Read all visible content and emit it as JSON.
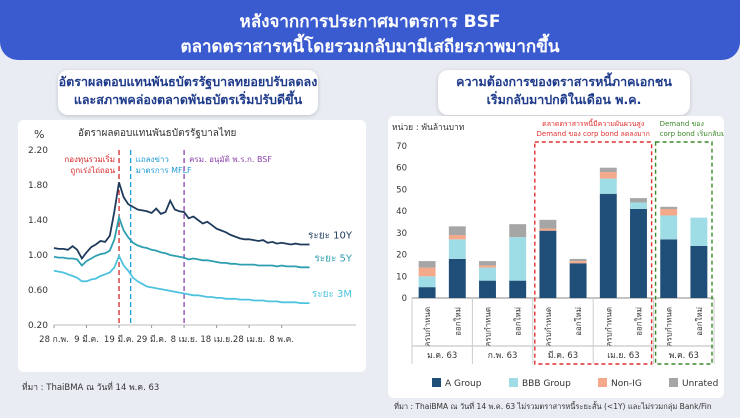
{
  "header": {
    "line1": "หลังจากการประกาศมาตรการ BSF",
    "line2": "ตลาดตราสารหนี้โดยรวมกลับมามีเสถียรภาพมากขึ้น"
  },
  "left_panel": {
    "heading_line1": "อัตราผลตอบแทนพันธบัตรรัฐบาลทยอยปรับลดลง",
    "heading_line2": "และสภาพคล่องตลาดพันธบัตรเริ่มปรับดีขึ้น",
    "source": "ที่มา : ThaiBMA ณ วันที่ 14 พ.ค. 63"
  },
  "right_panel": {
    "heading_line1": "ความต้องการของตราสารหนี้ภาคเอกชน",
    "heading_line2": "เริ่มกลับมาปกติในเดือน พ.ค.",
    "source": "ที่มา : ThaiBMA ณ วันที่ 14 พ.ค. 63 ไม่รวมตราสารหนี้ระยะสั้น (<1Y) และไม่รวมกลุ่ม Bank/Fin"
  },
  "chart_data": [
    {
      "type": "line",
      "title": "อัตราผลตอบแทนพันธบัตรรัฐบาลไทย",
      "ylabel": "%",
      "ylim": [
        0.2,
        2.2
      ],
      "yticks": [
        "2.20",
        "1.80",
        "1.40",
        "1.00",
        "0.60",
        "0.20"
      ],
      "xlim": [
        0,
        65
      ],
      "xticks": [
        {
          "label": "28 ก.พ.",
          "x": 0
        },
        {
          "label": "9 มี.ค.",
          "x": 7
        },
        {
          "label": "19 มี.ค.",
          "x": 14
        },
        {
          "label": "29 มี.ค.",
          "x": 21
        },
        {
          "label": "8 เม.ย.",
          "x": 28
        },
        {
          "label": "18 เม.ย.",
          "x": 35
        },
        {
          "label": "28 เม.ย.",
          "x": 42
        },
        {
          "label": "8 พ.ค.",
          "x": 49
        }
      ],
      "events": [
        {
          "x": 14,
          "label1": "กองทุนรวมเริ่ม",
          "label2": "ถูกเร่งไถ่ถอน",
          "color": "#d62728"
        },
        {
          "x": 16.5,
          "label1": "แถลงข่าว",
          "label2": "มาตรการ MFLF",
          "color": "#1f9bd6"
        },
        {
          "x": 28,
          "label1": "ครม. อนุมัติ พ.ร.ก. BSF",
          "label2": "",
          "color": "#8e44ad"
        }
      ],
      "series": [
        {
          "name": "ระยะ 10Y",
          "color": "#1f3b5c",
          "points": [
            [
              0,
              1.08
            ],
            [
              1,
              1.07
            ],
            [
              2,
              1.07
            ],
            [
              3,
              1.06
            ],
            [
              4,
              1.1
            ],
            [
              5,
              1.06
            ],
            [
              6,
              0.96
            ],
            [
              7,
              1.03
            ],
            [
              8,
              1.09
            ],
            [
              9,
              1.12
            ],
            [
              10,
              1.16
            ],
            [
              11,
              1.15
            ],
            [
              12,
              1.22
            ],
            [
              13,
              1.5
            ],
            [
              14,
              1.83
            ],
            [
              15,
              1.66
            ],
            [
              16,
              1.58
            ],
            [
              17,
              1.55
            ],
            [
              18,
              1.52
            ],
            [
              19,
              1.51
            ],
            [
              20,
              1.5
            ],
            [
              21,
              1.48
            ],
            [
              22,
              1.53
            ],
            [
              23,
              1.47
            ],
            [
              24,
              1.49
            ],
            [
              25,
              1.62
            ],
            [
              26,
              1.52
            ],
            [
              27,
              1.5
            ],
            [
              28,
              1.49
            ],
            [
              29,
              1.42
            ],
            [
              30,
              1.44
            ],
            [
              31,
              1.4
            ],
            [
              32,
              1.36
            ],
            [
              33,
              1.38
            ],
            [
              34,
              1.34
            ],
            [
              35,
              1.3
            ],
            [
              36,
              1.28
            ],
            [
              37,
              1.26
            ],
            [
              38,
              1.23
            ],
            [
              39,
              1.21
            ],
            [
              40,
              1.19
            ],
            [
              41,
              1.18
            ],
            [
              42,
              1.18
            ],
            [
              43,
              1.17
            ],
            [
              44,
              1.16
            ],
            [
              45,
              1.17
            ],
            [
              46,
              1.14
            ],
            [
              47,
              1.15
            ],
            [
              48,
              1.13
            ],
            [
              49,
              1.14
            ],
            [
              50,
              1.13
            ],
            [
              51,
              1.12
            ],
            [
              52,
              1.13
            ],
            [
              53,
              1.12
            ],
            [
              54,
              1.12
            ],
            [
              55,
              1.12
            ]
          ]
        },
        {
          "name": "ระยะ 5Y",
          "color": "#2e9fb0",
          "points": [
            [
              0,
              0.98
            ],
            [
              1,
              0.97
            ],
            [
              2,
              0.97
            ],
            [
              3,
              0.96
            ],
            [
              4,
              0.96
            ],
            [
              5,
              0.95
            ],
            [
              6,
              0.88
            ],
            [
              7,
              0.93
            ],
            [
              8,
              0.96
            ],
            [
              9,
              0.99
            ],
            [
              10,
              1.01
            ],
            [
              11,
              1.02
            ],
            [
              12,
              1.05
            ],
            [
              13,
              1.18
            ],
            [
              14,
              1.43
            ],
            [
              15,
              1.28
            ],
            [
              16,
              1.2
            ],
            [
              17,
              1.14
            ],
            [
              18,
              1.11
            ],
            [
              19,
              1.09
            ],
            [
              20,
              1.08
            ],
            [
              21,
              1.06
            ],
            [
              22,
              1.05
            ],
            [
              23,
              1.03
            ],
            [
              24,
              1.02
            ],
            [
              25,
              1.0
            ],
            [
              26,
              0.99
            ],
            [
              27,
              0.98
            ],
            [
              28,
              0.97
            ],
            [
              29,
              0.95
            ],
            [
              30,
              0.96
            ],
            [
              31,
              0.95
            ],
            [
              32,
              0.94
            ],
            [
              33,
              0.94
            ],
            [
              34,
              0.93
            ],
            [
              35,
              0.92
            ],
            [
              36,
              0.91
            ],
            [
              37,
              0.91
            ],
            [
              38,
              0.9
            ],
            [
              39,
              0.9
            ],
            [
              40,
              0.89
            ],
            [
              41,
              0.89
            ],
            [
              42,
              0.89
            ],
            [
              43,
              0.89
            ],
            [
              44,
              0.88
            ],
            [
              45,
              0.88
            ],
            [
              46,
              0.88
            ],
            [
              47,
              0.88
            ],
            [
              48,
              0.87
            ],
            [
              49,
              0.88
            ],
            [
              50,
              0.87
            ],
            [
              51,
              0.87
            ],
            [
              52,
              0.87
            ],
            [
              53,
              0.86
            ],
            [
              54,
              0.86
            ],
            [
              55,
              0.86
            ]
          ]
        },
        {
          "name": "ระยะ 3M",
          "color": "#4ec3e0",
          "points": [
            [
              0,
              0.82
            ],
            [
              1,
              0.81
            ],
            [
              2,
              0.8
            ],
            [
              3,
              0.78
            ],
            [
              4,
              0.76
            ],
            [
              5,
              0.74
            ],
            [
              6,
              0.7
            ],
            [
              7,
              0.7
            ],
            [
              8,
              0.72
            ],
            [
              9,
              0.73
            ],
            [
              10,
              0.76
            ],
            [
              11,
              0.78
            ],
            [
              12,
              0.8
            ],
            [
              13,
              0.86
            ],
            [
              14,
              0.99
            ],
            [
              15,
              0.88
            ],
            [
              16,
              0.82
            ],
            [
              17,
              0.74
            ],
            [
              18,
              0.7
            ],
            [
              19,
              0.67
            ],
            [
              20,
              0.64
            ],
            [
              21,
              0.63
            ],
            [
              22,
              0.62
            ],
            [
              23,
              0.61
            ],
            [
              24,
              0.6
            ],
            [
              25,
              0.59
            ],
            [
              26,
              0.58
            ],
            [
              27,
              0.57
            ],
            [
              28,
              0.56
            ],
            [
              29,
              0.55
            ],
            [
              30,
              0.54
            ],
            [
              31,
              0.54
            ],
            [
              32,
              0.53
            ],
            [
              33,
              0.52
            ],
            [
              34,
              0.52
            ],
            [
              35,
              0.51
            ],
            [
              36,
              0.51
            ],
            [
              37,
              0.5
            ],
            [
              38,
              0.5
            ],
            [
              39,
              0.5
            ],
            [
              40,
              0.49
            ],
            [
              41,
              0.49
            ],
            [
              42,
              0.49
            ],
            [
              43,
              0.48
            ],
            [
              44,
              0.48
            ],
            [
              45,
              0.48
            ],
            [
              46,
              0.47
            ],
            [
              47,
              0.47
            ],
            [
              48,
              0.47
            ],
            [
              49,
              0.46
            ],
            [
              50,
              0.46
            ],
            [
              51,
              0.46
            ],
            [
              52,
              0.46
            ],
            [
              53,
              0.45
            ],
            [
              54,
              0.45
            ],
            [
              55,
              0.45
            ]
          ]
        }
      ]
    },
    {
      "type": "bar",
      "stacked": true,
      "ylabel": "หน่วย : พันล้านบาท",
      "ylim": [
        0,
        70
      ],
      "yticks": [
        0,
        10,
        20,
        30,
        40,
        50,
        60,
        70
      ],
      "categories": [
        "ครบกำหนด",
        "ออกใหม่",
        "ครบกำหนด",
        "ออกใหม่",
        "ครบกำหนด",
        "ออกใหม่",
        "ครบกำหนด",
        "ออกใหม่",
        "ครบกำหนด",
        "ออกใหม่"
      ],
      "months": [
        "ม.ค. 63",
        "ก.พ. 63",
        "มี.ค. 63",
        "เม.ย. 63",
        "พ.ค. 63"
      ],
      "series": [
        {
          "name": "A Group",
          "color": "#1f4e79",
          "values": [
            5,
            18,
            8,
            8,
            31,
            16,
            48,
            41,
            27,
            24
          ]
        },
        {
          "name": "BBB Group",
          "color": "#9fdde6",
          "values": [
            5,
            9,
            6,
            20,
            0,
            0,
            7,
            3,
            11,
            13
          ]
        },
        {
          "name": "Non-IG",
          "color": "#f4a98a",
          "values": [
            4,
            2,
            1,
            0,
            1,
            1,
            3,
            0,
            3,
            0
          ]
        },
        {
          "name": "Unrated",
          "color": "#a6a6a6",
          "values": [
            3,
            4,
            2,
            6,
            4,
            1,
            2,
            2,
            1,
            0
          ]
        }
      ],
      "annotations": [
        {
          "line1": "ตลาดตราสารหนี้มีความผันผวนสูง",
          "line2": "Demand ของ corp bond ลดลงมาก",
          "color": "#e03030"
        },
        {
          "line1": "Demand ของ",
          "line2": "corp bond เริ่มกลับมา",
          "color": "#3a8a2a"
        }
      ]
    }
  ]
}
